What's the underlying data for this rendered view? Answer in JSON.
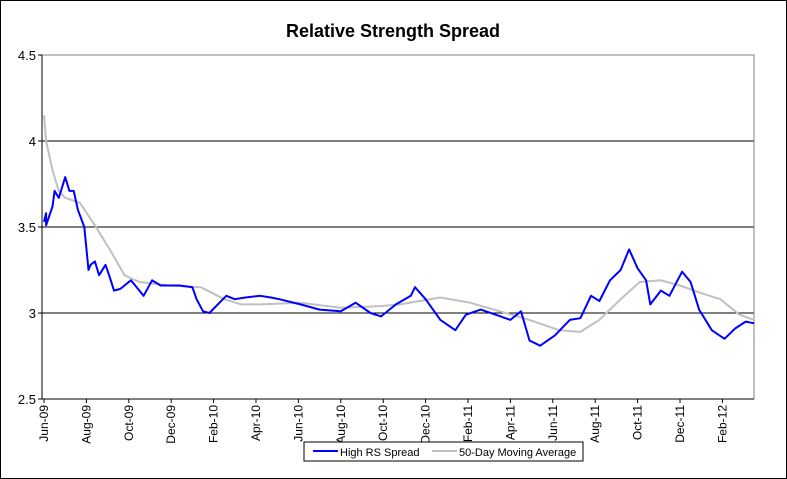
{
  "chart_data": {
    "type": "line",
    "title": "Relative Strength Spread",
    "xlabel": "",
    "ylabel": "",
    "x_unit": "months since Jun-09",
    "xlim": [
      0,
      33.5
    ],
    "ylim": [
      2.5,
      4.5
    ],
    "yticks": [
      2.5,
      3,
      3.5,
      4,
      4.5
    ],
    "ytick_labels": [
      "2.5",
      "3",
      "3.5",
      "4",
      "4.5"
    ],
    "xtick_labels": [
      "Jun-09",
      "Aug-09",
      "Oct-09",
      "Dec-09",
      "Feb-10",
      "Apr-10",
      "Jun-10",
      "Aug-10",
      "Oct-10",
      "Dec-10",
      "Feb-11",
      "Apr-11",
      "Jun-11",
      "Aug-11",
      "Oct-11",
      "Dec-11",
      "Feb-12"
    ],
    "grid": "horizontal",
    "legend_position": "bottom-center",
    "series": [
      {
        "name": "High RS Spread",
        "color": "#0000FF",
        "x": [
          0,
          0.1,
          0.1,
          0.4,
          0.5,
          0.7,
          0.8,
          1.0,
          1.2,
          1.4,
          1.6,
          1.9,
          2.1,
          2.2,
          2.4,
          2.6,
          2.9,
          3.1,
          3.3,
          3.6,
          4.1,
          4.3,
          4.7,
          5.1,
          5.5,
          6.4,
          7.0,
          7.2,
          7.5,
          7.8,
          8.2,
          8.6,
          9.0,
          9.5,
          10.2,
          10.7,
          11.1,
          12.1,
          13.0,
          14.0,
          14.7,
          15.4,
          15.9,
          16.6,
          17.3,
          17.5,
          18.0,
          18.7,
          19.4,
          19.9,
          20.6,
          21.3,
          22.0,
          22.5,
          22.9,
          23.4,
          24.1,
          24.8,
          25.3,
          25.8,
          26.2,
          26.7,
          27.2,
          27.6,
          28.0,
          28.4,
          28.6,
          29.1,
          29.5,
          30.1,
          30.5,
          30.9,
          31.5,
          32.1,
          32.6,
          33.1,
          33.5
        ],
        "y": [
          3.53,
          3.58,
          3.51,
          3.62,
          3.71,
          3.67,
          3.71,
          3.79,
          3.71,
          3.71,
          3.6,
          3.5,
          3.25,
          3.28,
          3.3,
          3.22,
          3.28,
          3.21,
          3.13,
          3.14,
          3.19,
          3.16,
          3.1,
          3.19,
          3.16,
          3.16,
          3.15,
          3.08,
          3.01,
          3.0,
          3.05,
          3.1,
          3.08,
          3.09,
          3.1,
          3.09,
          3.08,
          3.05,
          3.02,
          3.01,
          3.06,
          3.0,
          2.98,
          3.05,
          3.1,
          3.15,
          3.08,
          2.96,
          2.9,
          2.99,
          3.02,
          2.99,
          2.96,
          3.01,
          2.84,
          2.81,
          2.87,
          2.96,
          2.97,
          3.1,
          3.07,
          3.19,
          3.25,
          3.37,
          3.26,
          3.19,
          3.05,
          3.13,
          3.1,
          3.24,
          3.18,
          3.02,
          2.9,
          2.85,
          2.91,
          2.95,
          2.94
        ]
      },
      {
        "name": "50-Day Moving Average",
        "color": "#C0C0C0",
        "x": [
          0,
          0.1,
          0.4,
          0.7,
          1.0,
          1.7,
          2.4,
          3.1,
          3.8,
          4.5,
          5.9,
          7.4,
          8.5,
          9.3,
          10.2,
          12.1,
          14.0,
          15.9,
          16.8,
          18.7,
          20.1,
          21.5,
          22.9,
          24.3,
          25.3,
          26.2,
          27.2,
          28.1,
          29.1,
          30.0,
          30.9,
          31.9,
          32.8,
          33.5
        ],
        "y": [
          4.15,
          4.0,
          3.83,
          3.71,
          3.67,
          3.64,
          3.51,
          3.37,
          3.22,
          3.18,
          3.16,
          3.15,
          3.08,
          3.05,
          3.05,
          3.06,
          3.03,
          3.04,
          3.05,
          3.09,
          3.06,
          3.01,
          2.96,
          2.9,
          2.89,
          2.96,
          3.08,
          3.18,
          3.19,
          3.16,
          3.12,
          3.08,
          2.99,
          2.96
        ]
      }
    ]
  }
}
